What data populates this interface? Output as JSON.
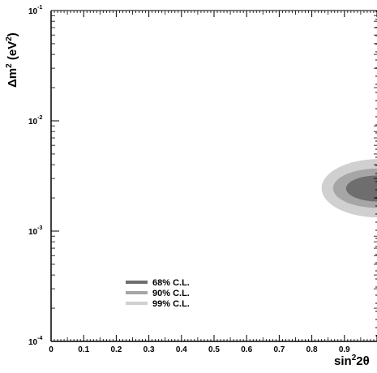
{
  "chart_data": {
    "type": "contour",
    "title": "",
    "xlabel_base": "sin",
    "xlabel_sup": "2",
    "xlabel_rest": "2θ",
    "ylabel_delta": "Δm",
    "ylabel_sup1": "2",
    "ylabel_mid": " (eV",
    "ylabel_sup2": "2",
    "ylabel_end": ")",
    "xlim": [
      0,
      1.0
    ],
    "ylim": [
      0.0001,
      0.1
    ],
    "yscale": "log",
    "x_ticks": [
      {
        "value": 0,
        "label": "0"
      },
      {
        "value": 0.1,
        "label": "0.1"
      },
      {
        "value": 0.2,
        "label": "0.2"
      },
      {
        "value": 0.3,
        "label": "0.3"
      },
      {
        "value": 0.4,
        "label": "0.4"
      },
      {
        "value": 0.5,
        "label": "0.5"
      },
      {
        "value": 0.6,
        "label": "0.6"
      },
      {
        "value": 0.7,
        "label": "0.7"
      },
      {
        "value": 0.8,
        "label": "0.8"
      },
      {
        "value": 0.9,
        "label": "0.9"
      },
      {
        "value": 1.0,
        "label": "1"
      }
    ],
    "y_ticks": [
      {
        "value": 0.1,
        "base": "10",
        "exp": "-1"
      },
      {
        "value": 0.01,
        "base": "10",
        "exp": "-2"
      },
      {
        "value": 0.001,
        "base": "10",
        "exp": "-3"
      },
      {
        "value": 0.0001,
        "base": "10",
        "exp": "-4"
      }
    ],
    "legend_placement": "bottom-left",
    "regions": [
      {
        "name": "99% C.L.",
        "color": "#d0d0d0",
        "x_min": 0.83,
        "x_max": 1.0,
        "y_min": 0.00133,
        "y_max": 0.0045
      },
      {
        "name": "90% C.L.",
        "color": "#a6a6a6",
        "x_min": 0.865,
        "x_max": 1.0,
        "y_min": 0.00162,
        "y_max": 0.0037
      },
      {
        "name": "68% C.L.",
        "color": "#6e6e6e",
        "x_min": 0.905,
        "x_max": 1.0,
        "y_min": 0.00185,
        "y_max": 0.0032
      }
    ],
    "legend": [
      {
        "label": "68% C.L.",
        "color": "#6e6e6e"
      },
      {
        "label": "90% C.L.",
        "color": "#a6a6a6"
      },
      {
        "label": "99% C.L.",
        "color": "#d0d0d0"
      }
    ]
  }
}
